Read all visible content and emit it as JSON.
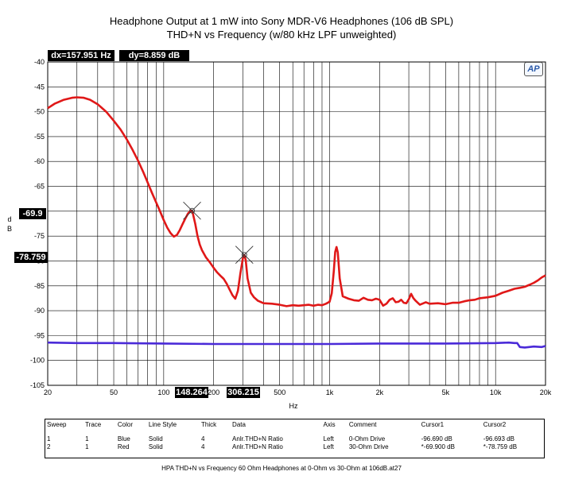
{
  "chart_data": {
    "type": "line",
    "title": "Headphone Output at 1 mW into Sony MDR-V6 Headphones (106 dB SPL)",
    "subtitle": "THD+N vs Frequency (w/80 kHz LPF unweighted)",
    "xlabel": "Hz",
    "ylabel": "d B",
    "x_scale": "log",
    "xlim": [
      20,
      20000
    ],
    "ylim": [
      -105,
      -40
    ],
    "grid": true,
    "x_ticks": [
      20,
      50,
      100,
      200,
      500,
      1000,
      2000,
      5000,
      10000,
      20000
    ],
    "x_tick_labels": [
      "20",
      "50",
      "100",
      "200",
      "500",
      "1k",
      "2k",
      "5k",
      "10k",
      "20k"
    ],
    "y_ticks": [
      -40,
      -45,
      -50,
      -55,
      -60,
      -65,
      -70,
      -75,
      -80,
      -85,
      -90,
      -95,
      -100,
      -105
    ],
    "series": [
      {
        "color": "#e01818",
        "x": [
          20,
          22,
          25,
          28,
          30,
          33,
          36,
          40,
          45,
          50,
          55,
          60,
          65,
          70,
          75,
          80,
          85,
          90,
          95,
          100,
          105,
          110,
          115,
          120,
          125,
          130,
          135,
          140,
          145,
          148,
          150,
          155,
          160,
          165,
          170,
          180,
          190,
          200,
          210,
          220,
          230,
          240,
          250,
          260,
          270,
          280,
          290,
          300,
          306,
          312,
          320,
          335,
          350,
          370,
          400,
          450,
          500,
          550,
          600,
          650,
          700,
          750,
          800,
          850,
          900,
          950,
          1000,
          1030,
          1060,
          1080,
          1100,
          1120,
          1150,
          1200,
          1300,
          1400,
          1500,
          1600,
          1700,
          1800,
          1900,
          2000,
          2100,
          2200,
          2300,
          2400,
          2500,
          2600,
          2700,
          2800,
          2900,
          3000,
          3100,
          3200,
          3300,
          3500,
          3800,
          4000,
          4500,
          5000,
          5500,
          6000,
          6500,
          7000,
          7500,
          8000,
          9000,
          10000,
          11000,
          12000,
          13000,
          14000,
          15000,
          16000,
          17000,
          18000,
          19000,
          20000
        ],
        "y": [
          -49.3,
          -48.4,
          -47.6,
          -47.2,
          -47.1,
          -47.2,
          -47.6,
          -48.5,
          -50.0,
          -51.8,
          -53.6,
          -55.6,
          -57.7,
          -59.8,
          -62.0,
          -64.2,
          -66.3,
          -68.2,
          -70.0,
          -71.8,
          -73.3,
          -74.4,
          -75.1,
          -74.8,
          -73.8,
          -72.6,
          -71.5,
          -70.5,
          -69.9,
          -69.9,
          -70.5,
          -72.6,
          -75.0,
          -76.7,
          -77.8,
          -79.3,
          -80.3,
          -81.4,
          -82.3,
          -83.0,
          -83.6,
          -84.6,
          -85.8,
          -86.9,
          -87.6,
          -86.0,
          -82.5,
          -79.5,
          -78.8,
          -79.8,
          -83.5,
          -86.4,
          -87.3,
          -88.0,
          -88.5,
          -88.6,
          -88.8,
          -89.1,
          -88.9,
          -89.0,
          -88.9,
          -88.8,
          -89.0,
          -88.8,
          -88.9,
          -88.6,
          -88.2,
          -86.5,
          -82.0,
          -78.2,
          -77.2,
          -78.3,
          -83.5,
          -87.1,
          -87.6,
          -87.9,
          -88.0,
          -87.4,
          -87.8,
          -87.9,
          -87.6,
          -87.8,
          -89.0,
          -88.6,
          -87.8,
          -87.5,
          -88.3,
          -88.2,
          -87.8,
          -88.4,
          -88.5,
          -87.7,
          -86.6,
          -87.5,
          -88.0,
          -88.8,
          -88.3,
          -88.6,
          -88.5,
          -88.7,
          -88.4,
          -88.4,
          -88.1,
          -87.9,
          -87.8,
          -87.5,
          -87.3,
          -87.0,
          -86.4,
          -86.0,
          -85.6,
          -85.4,
          -85.2,
          -84.8,
          -84.4,
          -83.9,
          -83.3,
          -82.9
        ]
      },
      {
        "color": "#4a2ad8",
        "x": [
          20,
          30,
          50,
          100,
          200,
          500,
          1000,
          2000,
          5000,
          10000,
          12000,
          13000,
          13500,
          14000,
          15000,
          17000,
          19000,
          20000
        ],
        "y": [
          -96.4,
          -96.5,
          -96.5,
          -96.6,
          -96.7,
          -96.7,
          -96.7,
          -96.6,
          -96.6,
          -96.5,
          -96.4,
          -96.5,
          -96.5,
          -97.3,
          -97.4,
          -97.2,
          -97.3,
          -97.1
        ]
      }
    ],
    "cursors": {
      "dx_label": "dx=157.951 Hz",
      "dy_label": "dy=8.859  dB",
      "c1": {
        "x": 148.264,
        "y": -69.9,
        "x_label": "148.264",
        "y_label": "-69.9"
      },
      "c2": {
        "x": 306.215,
        "y": -78.759,
        "x_label": "306.215",
        "y_label": "-78.759"
      }
    },
    "legend": {
      "headers": [
        "Sweep",
        "Trace",
        "Color",
        "Line Style",
        "Thick",
        "Data",
        "Axis",
        "Comment",
        "Cursor1",
        "Cursor2"
      ],
      "rows": [
        [
          "1",
          "1",
          "Blue",
          "Solid",
          "4",
          "Anlr.THD+N Ratio",
          "Left",
          "0-Ohm Drive",
          "-96.690  dB",
          "-96.693  dB"
        ],
        [
          "2",
          "1",
          "Red",
          "Solid",
          "4",
          "Anlr.THD+N Ratio",
          "Left",
          "30-Ohm Drive",
          "*-69.900  dB",
          "*-78.759  dB"
        ]
      ]
    },
    "footer": "HPA THD+N vs Frequency 60 Ohm Headphones at 0-Ohm vs 30-Ohm at 106dB.at27",
    "logo": "AP"
  }
}
